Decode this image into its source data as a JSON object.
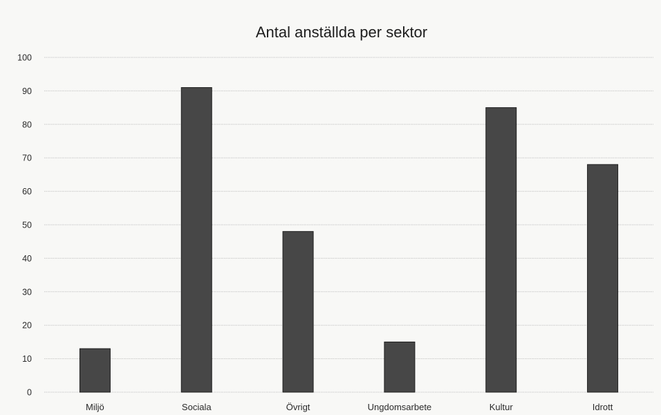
{
  "chart_data": {
    "type": "bar",
    "title": "Antal anställda per sektor",
    "xlabel": "",
    "ylabel": "",
    "categories": [
      "Miljö",
      "Sociala",
      "Övrigt",
      "Ungdomsarbete",
      "Kultur",
      "Idrott"
    ],
    "values": [
      13,
      91,
      48,
      15,
      85,
      68
    ],
    "ylim": [
      0,
      100
    ],
    "yticks": [
      "0",
      "10",
      "20",
      "30",
      "40",
      "50",
      "60",
      "70",
      "80",
      "90",
      "100"
    ],
    "grid": true,
    "legend": "none",
    "colors": {
      "bar": "#474747",
      "bar_edge": "#1f1f1f",
      "grid": "#c9c9c9",
      "background": "#f8f8f6"
    }
  }
}
